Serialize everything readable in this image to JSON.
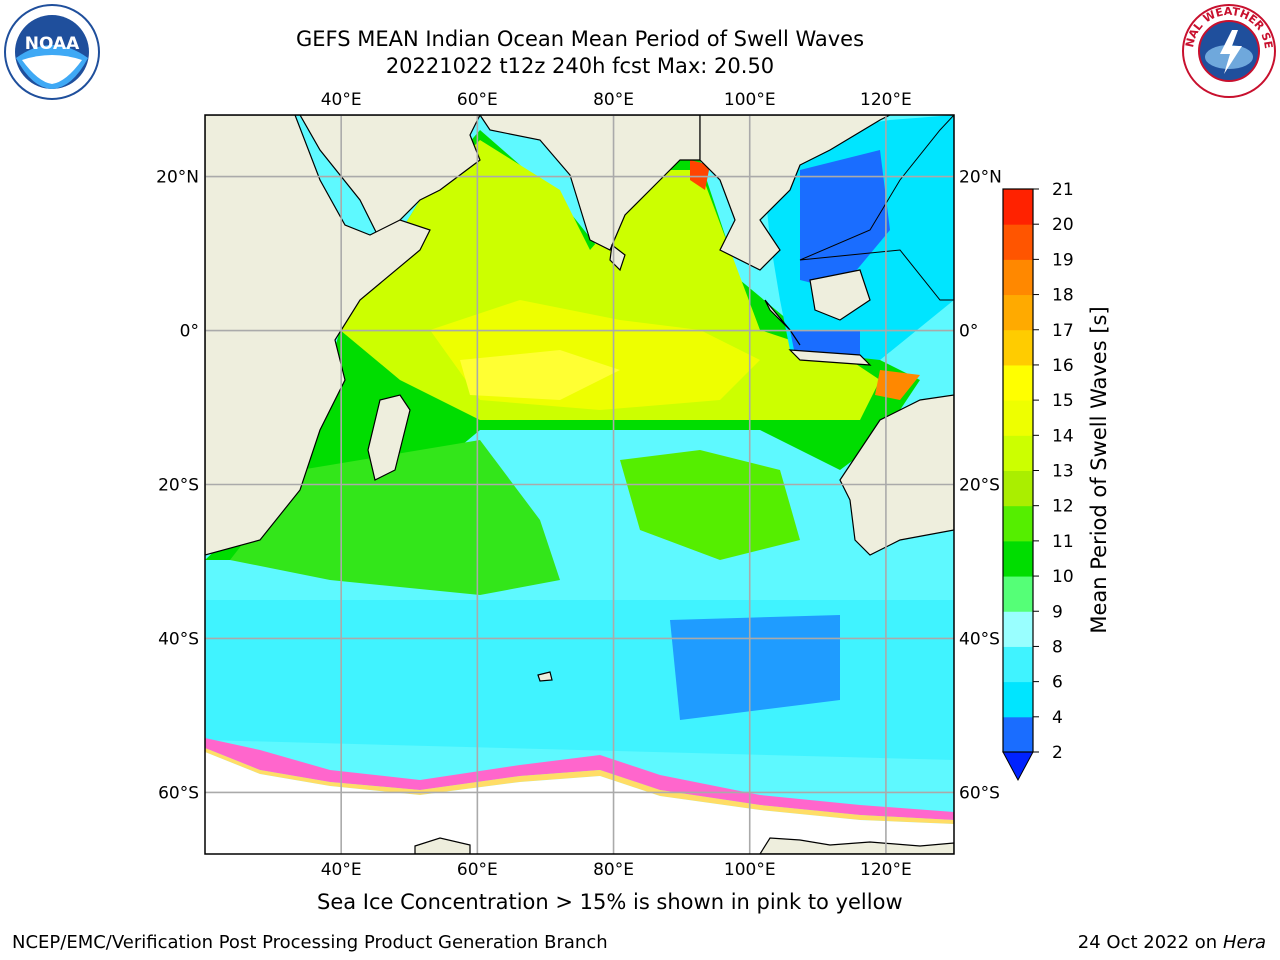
{
  "title": {
    "line1": "GEFS MEAN Indian Ocean Mean Period of Swell Waves",
    "line2": "20221022 t12z 240h fcst   Max: 20.50"
  },
  "map": {
    "projection": "equirectangular",
    "lon_range": [
      20,
      130
    ],
    "lat_range": [
      -68,
      28
    ],
    "lon_ticks": [
      "40°E",
      "60°E",
      "80°E",
      "100°E",
      "120°E"
    ],
    "lat_ticks": [
      "20°N",
      "0°",
      "20°S",
      "40°S",
      "60°S"
    ],
    "land_color": "#eeeedd",
    "gridline_color": "#aaaaaa"
  },
  "colorbar": {
    "label": "Mean Period of Swell Waves [s]",
    "tick_labels": [
      "2",
      "4",
      "6",
      "8",
      "9",
      "10",
      "11",
      "12",
      "13",
      "14",
      "15",
      "16",
      "17",
      "18",
      "19",
      "20",
      "21"
    ],
    "colors": [
      "#1a6dff",
      "#00e5ff",
      "#40f3ff",
      "#99ffff",
      "#55ff77",
      "#00dd00",
      "#55ee00",
      "#aaee00",
      "#ccff00",
      "#eeff00",
      "#ffff00",
      "#ffcc00",
      "#ffaa00",
      "#ff8800",
      "#ff5500",
      "#ff2200"
    ],
    "under_color": "#0022ff"
  },
  "footnote": "Sea Ice Concentration > 15% is shown in pink to yellow",
  "credit": "NCEP/EMC/Verification Post Processing Product Generation Branch",
  "date_stamp": {
    "text": "24 Oct 2022 on",
    "machine": "Hera"
  },
  "logos": {
    "noaa": "NOAA",
    "nws_ring": "NATIONAL WEATHER SERVICE"
  }
}
